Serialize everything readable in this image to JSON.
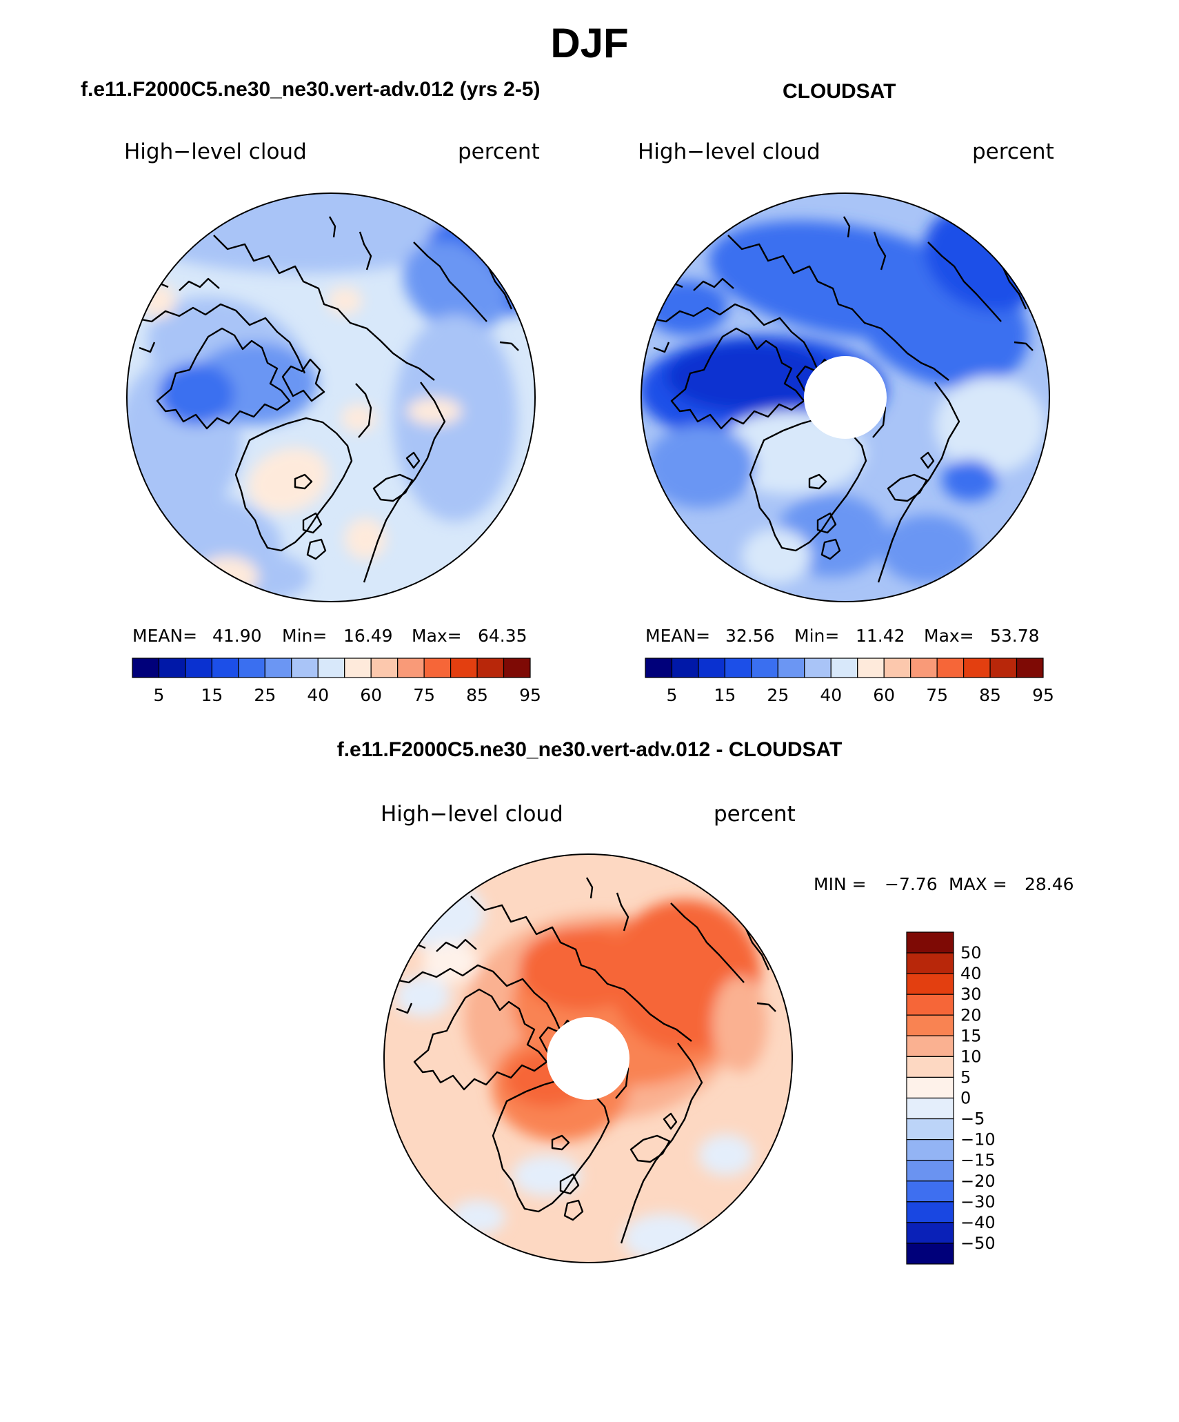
{
  "page": {
    "season": "DJF"
  },
  "panels": [
    {
      "id": "model",
      "title": "f.e11.F2000C5.ne30_ne30.vert-adv.012 (yrs 2-5)",
      "variable": "High−level cloud",
      "units": "percent",
      "mean_label": "MEAN=",
      "mean": "41.90",
      "min_label": "Min=",
      "min": "16.49",
      "max_label": "Max=",
      "max": "64.35"
    },
    {
      "id": "obs",
      "title": "CLOUDSAT",
      "variable": "High−level cloud",
      "units": "percent",
      "mean_label": "MEAN=",
      "mean": "32.56",
      "min_label": "Min=",
      "min": "11.42",
      "max_label": "Max=",
      "max": "53.78"
    }
  ],
  "diff_panel": {
    "title": "f.e11.F2000C5.ne30_ne30.vert-adv.012 - CLOUDSAT",
    "variable": "High−level cloud",
    "units": "percent",
    "min_label": "MIN =",
    "min": "−7.76",
    "max_label": "MAX =",
    "max": "28.46"
  },
  "chart_data": [
    {
      "type": "heatmap",
      "projection": "north polar stereographic",
      "title": "f.e11.F2000C5.ne30_ne30.vert-adv.012 (yrs 2-5)",
      "variable": "High-level cloud",
      "units": "percent",
      "mean": 41.9,
      "min": 16.49,
      "max": 64.35,
      "colorbar_levels": [
        5,
        10,
        15,
        20,
        25,
        30,
        40,
        50,
        60,
        70,
        75,
        80,
        85,
        90,
        95
      ],
      "colorbar_tick_labels": [
        "5",
        "15",
        "25",
        "40",
        "60",
        "75",
        "85",
        "95"
      ],
      "colorbar_colors": [
        "#00007a",
        "#0018a8",
        "#0a31d0",
        "#1c4fe8",
        "#3a6ff0",
        "#6b96f3",
        "#a9c4f7",
        "#d8e8fa",
        "#feeadb",
        "#fcc8ad",
        "#f99a78",
        "#f66638",
        "#e33f10",
        "#b8270a",
        "#7e0a05"
      ]
    },
    {
      "type": "heatmap",
      "projection": "north polar stereographic",
      "title": "CLOUDSAT",
      "variable": "High-level cloud",
      "units": "percent",
      "mean": 32.56,
      "min": 11.42,
      "max": 53.78,
      "colorbar_levels": [
        5,
        10,
        15,
        20,
        25,
        30,
        40,
        50,
        60,
        70,
        75,
        80,
        85,
        90,
        95
      ],
      "colorbar_tick_labels": [
        "5",
        "15",
        "25",
        "40",
        "60",
        "75",
        "85",
        "95"
      ],
      "colorbar_colors": [
        "#00007a",
        "#0018a8",
        "#0a31d0",
        "#1c4fe8",
        "#3a6ff0",
        "#6b96f3",
        "#a9c4f7",
        "#d8e8fa",
        "#feeadb",
        "#fcc8ad",
        "#f99a78",
        "#f66638",
        "#e33f10",
        "#b8270a",
        "#7e0a05"
      ]
    },
    {
      "type": "heatmap",
      "projection": "north polar stereographic",
      "title": "f.e11.F2000C5.ne30_ne30.vert-adv.012 - CLOUDSAT",
      "variable": "High-level cloud",
      "units": "percent",
      "min": -7.76,
      "max": 28.46,
      "colorbar_levels": [
        50,
        40,
        30,
        20,
        15,
        10,
        5,
        0,
        -5,
        -10,
        -15,
        -20,
        -30,
        -40,
        -50
      ],
      "colorbar_tick_labels": [
        "50",
        "40",
        "30",
        "20",
        "15",
        "10",
        "5",
        "0",
        "−5",
        "−10",
        "−15",
        "−20",
        "−30",
        "−40",
        "−50"
      ],
      "colorbar_colors": [
        "#7e0a05",
        "#b8270a",
        "#e33f10",
        "#f66638",
        "#f98352",
        "#fab191",
        "#fdd8c2",
        "#fef2ea",
        "#e4eefb",
        "#bcd4f8",
        "#93b4f4",
        "#6a93f1",
        "#3e6ff0",
        "#1947e2",
        "#0a21b8",
        "#00007a"
      ]
    }
  ]
}
